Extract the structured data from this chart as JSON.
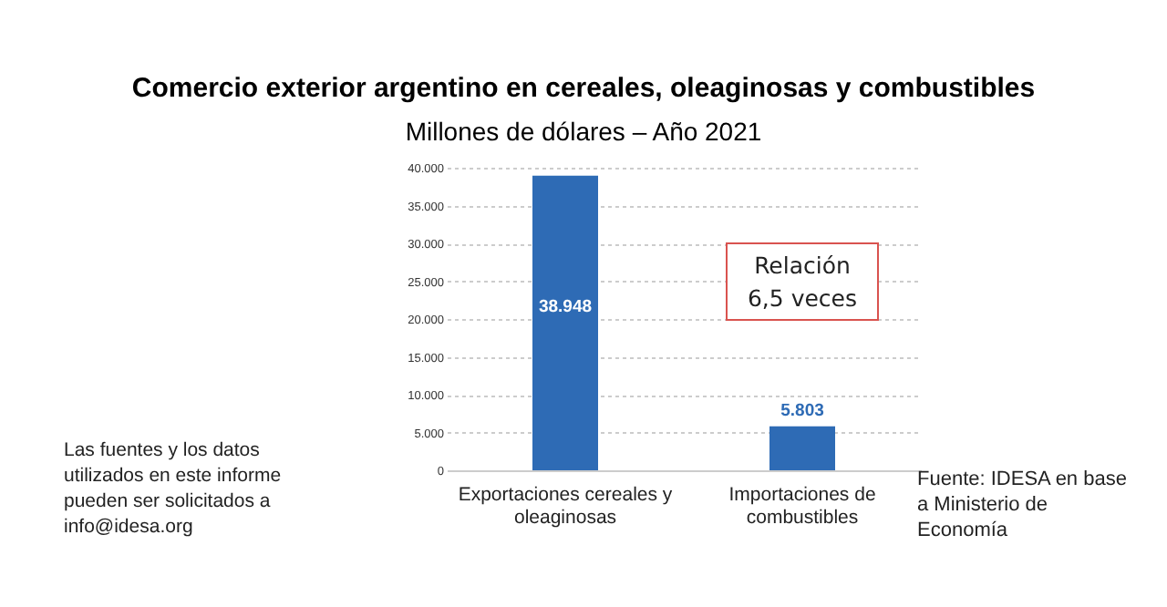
{
  "chart_data": {
    "type": "bar",
    "title": "Comercio exterior argentino en cereales, oleaginosas y combustibles",
    "subtitle": "Millones de dólares – Año 2021",
    "categories": [
      "Exportaciones cereales y oleaginosas",
      "Importaciones de combustibles"
    ],
    "values": [
      38948,
      5803
    ],
    "value_labels": [
      "38.948",
      "5.803"
    ],
    "color": "#2e6bb5",
    "ylim": [
      0,
      40000
    ],
    "yticks": [
      {
        "value": 0,
        "label": "0"
      },
      {
        "value": 5000,
        "label": "5.000"
      },
      {
        "value": 10000,
        "label": "10.000"
      },
      {
        "value": 15000,
        "label": "15.000"
      },
      {
        "value": 20000,
        "label": "20.000"
      },
      {
        "value": 25000,
        "label": "25.000"
      },
      {
        "value": 30000,
        "label": "30.000"
      },
      {
        "value": 35000,
        "label": "35.000"
      },
      {
        "value": 40000,
        "label": "40.000"
      }
    ],
    "grid": "y",
    "annotations": [
      "Relación 6,5 veces",
      "Las fuentes y los datos utilizados en este informe pueden ser solicitados a info@idesa.org",
      "Fuente: IDESA en base a Ministerio de Economía"
    ]
  }
}
